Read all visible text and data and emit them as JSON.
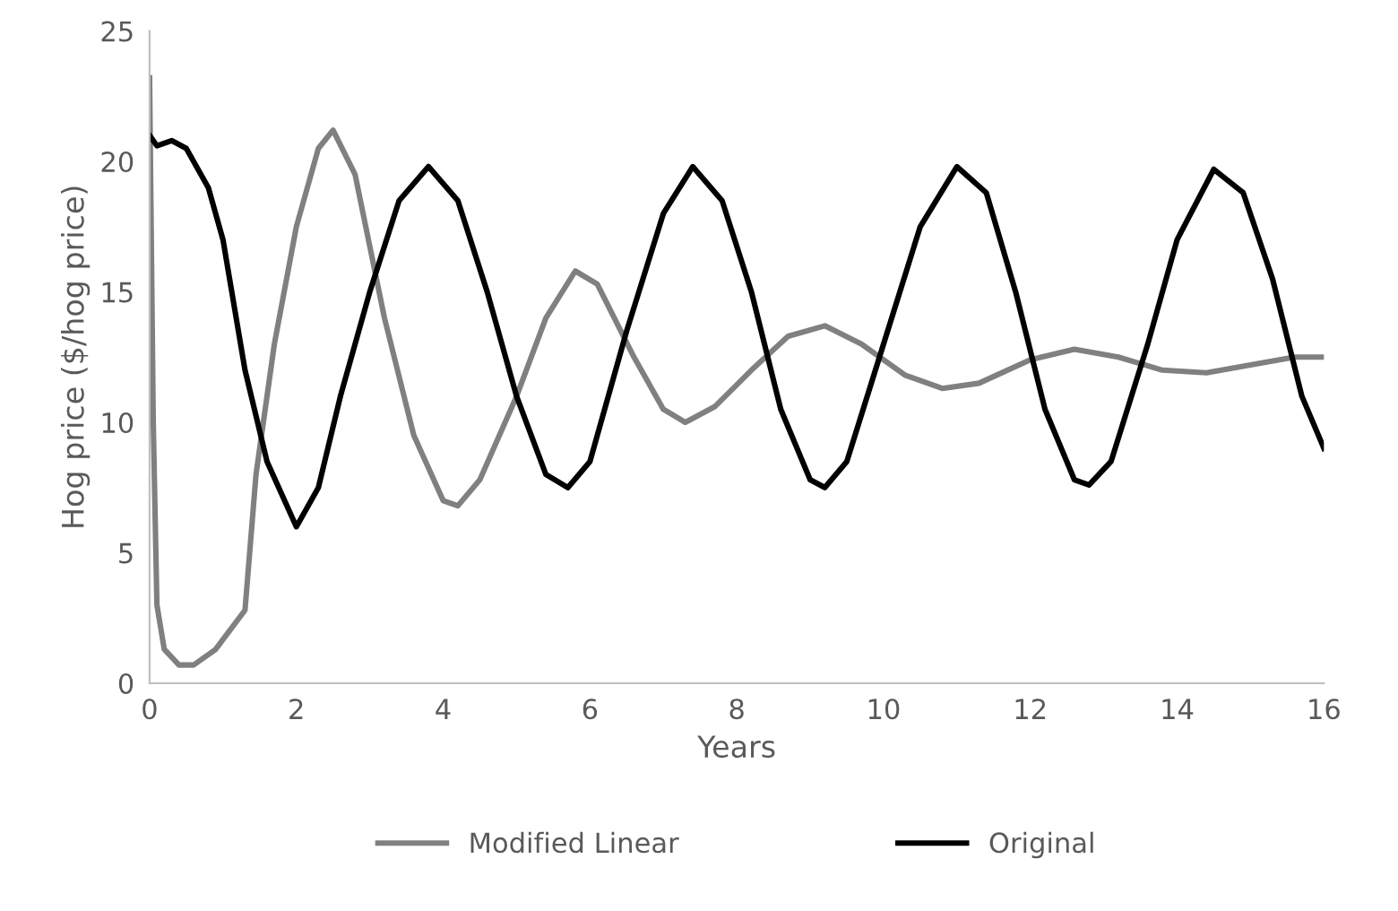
{
  "chart_data": {
    "type": "line",
    "xlabel": "Years",
    "ylabel": "Hog price ($/hog price)",
    "xlim": [
      0,
      16
    ],
    "xticks": [
      0,
      2,
      4,
      6,
      8,
      10,
      12,
      14,
      16
    ],
    "ylim": [
      0,
      25
    ],
    "yticks": [
      0,
      5,
      10,
      15,
      20,
      25
    ],
    "grid": false,
    "legend": "bottom",
    "marker": "none",
    "line_style": "solid",
    "series": [
      {
        "name": "Modified Linear",
        "color": "#808080",
        "x": [
          0,
          0.05,
          0.1,
          0.2,
          0.4,
          0.6,
          0.9,
          1.3,
          1.45,
          1.7,
          2,
          2.3,
          2.5,
          2.8,
          3.2,
          3.6,
          4,
          4.2,
          4.5,
          5,
          5.4,
          5.8,
          6.1,
          6.6,
          7,
          7.3,
          7.7,
          8.2,
          8.7,
          9.2,
          9.7,
          10.3,
          10.8,
          11.3,
          12,
          12.6,
          13.2,
          13.8,
          14.4,
          15,
          15.6,
          16
        ],
        "values": [
          23.2,
          10,
          3,
          1.3,
          0.7,
          0.7,
          1.3,
          2.8,
          8,
          13,
          17.5,
          20.5,
          21.2,
          19.5,
          14,
          9.5,
          7,
          6.8,
          7.8,
          11,
          14,
          15.8,
          15.3,
          12.5,
          10.5,
          10,
          10.6,
          12,
          13.3,
          13.7,
          13,
          11.8,
          11.3,
          11.5,
          12.4,
          12.8,
          12.5,
          12,
          11.9,
          12.2,
          12.5,
          12.5
        ]
      },
      {
        "name": "Original",
        "color": "#000000",
        "x": [
          0,
          0.1,
          0.3,
          0.5,
          0.8,
          1,
          1.3,
          1.6,
          2,
          2.3,
          2.6,
          3,
          3.4,
          3.8,
          4.2,
          4.6,
          5,
          5.4,
          5.7,
          6,
          6.5,
          7,
          7.4,
          7.8,
          8.2,
          8.6,
          9,
          9.2,
          9.5,
          10,
          10.5,
          11,
          11.4,
          11.8,
          12.2,
          12.6,
          12.8,
          13.1,
          13.6,
          14,
          14.5,
          14.9,
          15.3,
          15.7,
          16
        ],
        "values": [
          21,
          20.6,
          20.8,
          20.5,
          19,
          17,
          12,
          8.5,
          6,
          7.5,
          11,
          15,
          18.5,
          19.8,
          18.5,
          15,
          11,
          8,
          7.5,
          8.5,
          13.5,
          18,
          19.8,
          18.5,
          15,
          10.5,
          7.8,
          7.5,
          8.5,
          13,
          17.5,
          19.8,
          18.8,
          15,
          10.5,
          7.8,
          7.6,
          8.5,
          13,
          17,
          19.7,
          18.8,
          15.5,
          11,
          9
        ]
      }
    ]
  }
}
